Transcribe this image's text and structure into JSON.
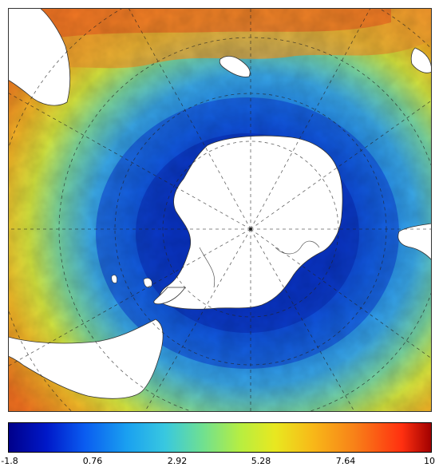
{
  "map": {
    "projection": "south-polar-stereographic",
    "region": "Southern Ocean / Antarctica",
    "field": "sea surface temperature",
    "graticule": "dashed"
  },
  "colorbar": {
    "min": -1.8,
    "max": 10,
    "ticks": [
      "-1.8",
      "0.76",
      "2.92",
      "5.28",
      "7.64",
      "10"
    ],
    "colors": [
      "#00008a",
      "#0018c8",
      "#0a5cf0",
      "#1aa0f0",
      "#38c8e0",
      "#70e090",
      "#b8ee40",
      "#e8e820",
      "#f8b818",
      "#f88018",
      "#ff3010",
      "#a00000"
    ]
  }
}
